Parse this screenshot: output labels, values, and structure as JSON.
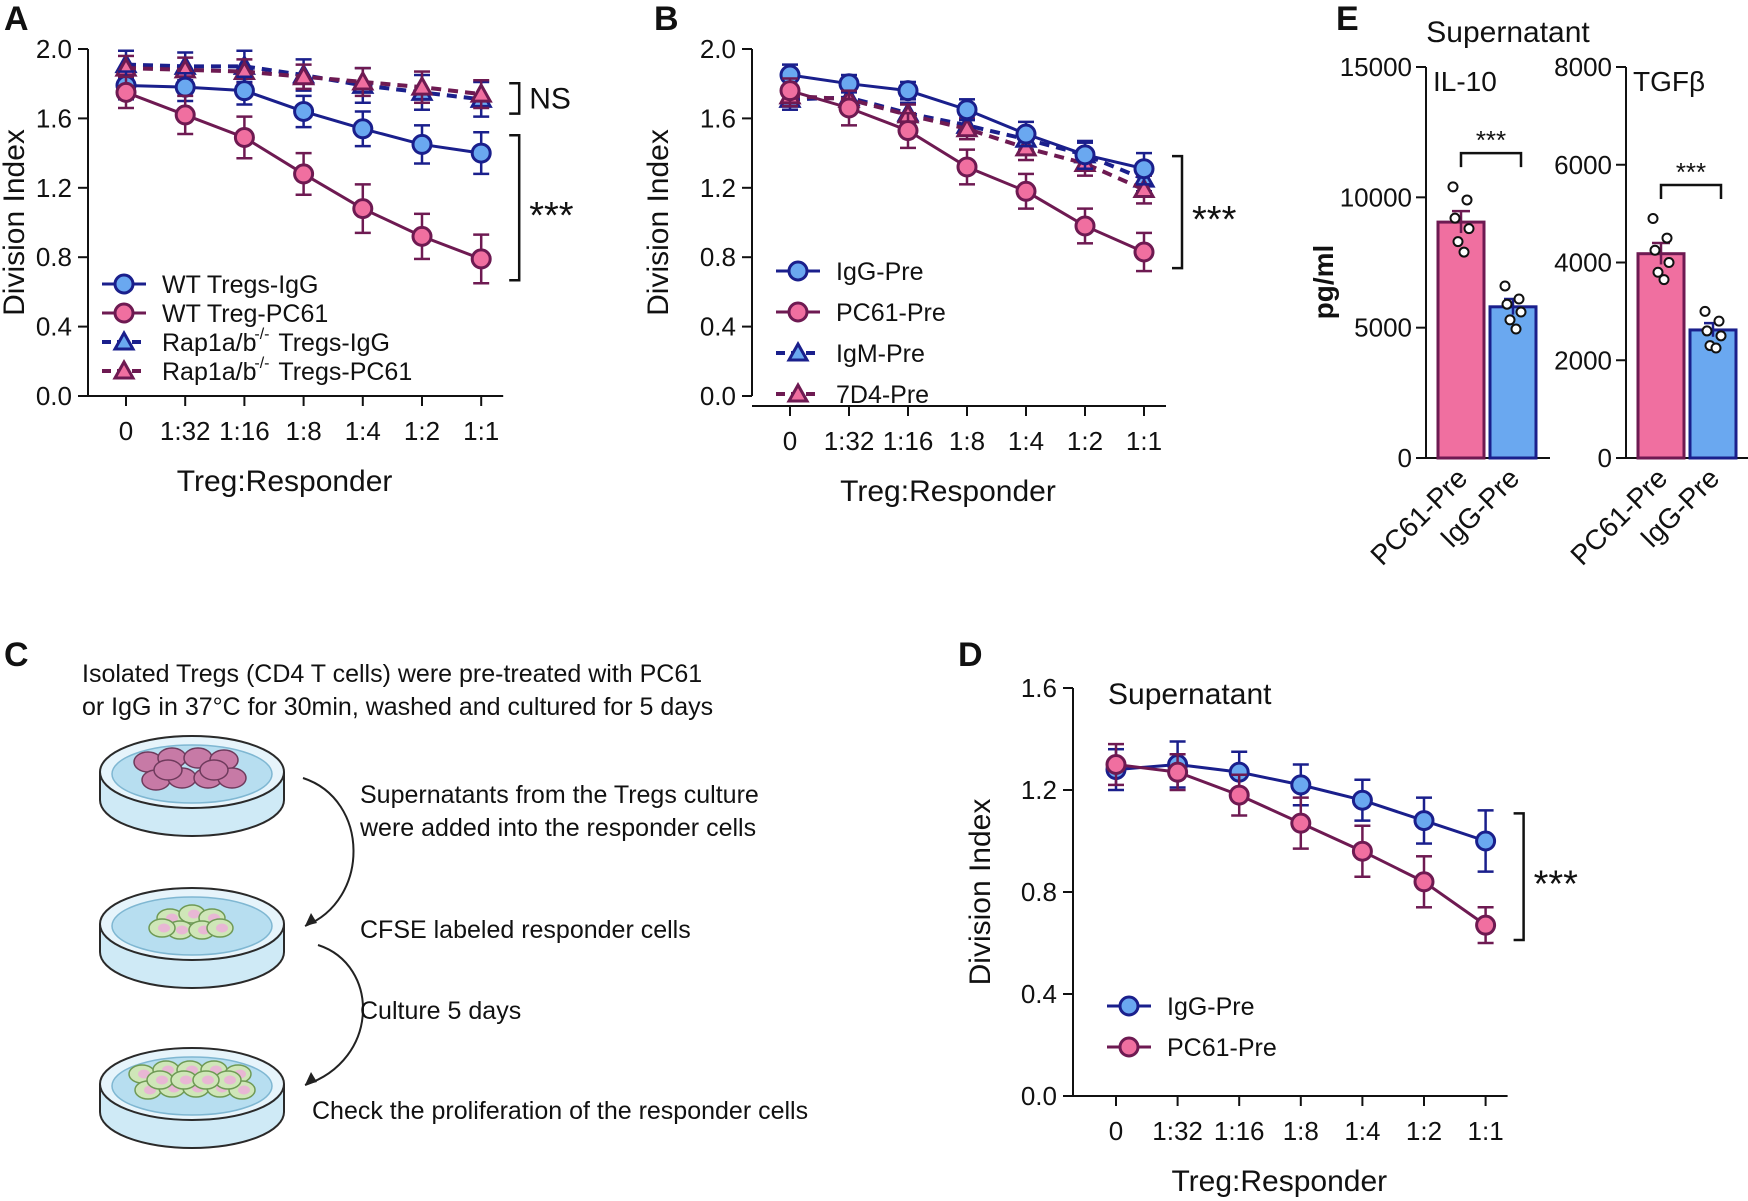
{
  "colors": {
    "blue_line": "#1a1f8c",
    "blue_fill": "#6aa8f0",
    "pink_line": "#6e1a52",
    "pink_fill": "#f06fa0",
    "axis": "#111111"
  },
  "chart_data": [
    {
      "panel": "A",
      "type": "line",
      "categories": [
        "0",
        "1:32",
        "1:16",
        "1:8",
        "1:4",
        "1:2",
        "1:1"
      ],
      "xlabel": "Treg:Responder",
      "ylabel": "Division Index",
      "ylim": [
        0,
        2.0
      ],
      "yticks": [
        "0.0",
        "0.4",
        "0.8",
        "1.2",
        "1.6",
        "2.0"
      ],
      "legend_position": "bottom-left",
      "series": [
        {
          "name": "WT Tregs-IgG",
          "name_main": "WT Tregs-IgG",
          "name_sup": "",
          "name_tail": "",
          "style": "blue-circle-solid",
          "values": [
            1.79,
            1.78,
            1.76,
            1.64,
            1.54,
            1.45,
            1.4
          ],
          "errors": [
            0.08,
            0.08,
            0.08,
            0.09,
            0.1,
            0.11,
            0.12
          ]
        },
        {
          "name": "WT Treg-PC61",
          "name_main": "WT Treg-PC61",
          "name_sup": "",
          "name_tail": "",
          "style": "pink-circle-solid",
          "values": [
            1.75,
            1.62,
            1.49,
            1.28,
            1.08,
            0.92,
            0.79
          ],
          "errors": [
            0.09,
            0.11,
            0.12,
            0.12,
            0.14,
            0.13,
            0.14
          ]
        },
        {
          "name": "Rap1a/b-/- Tregs-IgG",
          "name_main": "Rap1a/b",
          "name_sup": "-/-",
          "name_tail": " Tregs-IgG",
          "style": "blue-triangle-dash",
          "values": [
            1.91,
            1.9,
            1.9,
            1.85,
            1.79,
            1.75,
            1.71
          ],
          "errors": [
            0.08,
            0.08,
            0.09,
            0.09,
            0.1,
            0.1,
            0.1
          ]
        },
        {
          "name": "Rap1a/b-/- Tregs-PC61",
          "name_main": "Rap1a/b",
          "name_sup": "-/-",
          "name_tail": " Tregs-PC61",
          "style": "pink-triangle-dash",
          "values": [
            1.89,
            1.88,
            1.87,
            1.84,
            1.81,
            1.78,
            1.74
          ],
          "errors": [
            0.07,
            0.07,
            0.07,
            0.07,
            0.08,
            0.09,
            0.08
          ]
        }
      ],
      "annotations": [
        {
          "text": "NS",
          "between": [
            "Rap1a/b-/- Tregs-IgG",
            "Rap1a/b-/- Tregs-PC61"
          ]
        },
        {
          "text": "***",
          "between": [
            "WT Tregs-IgG",
            "WT Treg-PC61"
          ]
        }
      ]
    },
    {
      "panel": "B",
      "type": "line",
      "categories": [
        "0",
        "1:32",
        "1:16",
        "1:8",
        "1:4",
        "1:2",
        "1:1"
      ],
      "xlabel": "Treg:Responder",
      "ylabel": "Division Index",
      "ylim": [
        0,
        2.0
      ],
      "yticks": [
        "0.0",
        "0.4",
        "0.8",
        "1.2",
        "1.6",
        "2.0"
      ],
      "legend_position": "bottom-left",
      "series": [
        {
          "name": "IgG-Pre",
          "style": "blue-circle-solid",
          "values": [
            1.85,
            1.8,
            1.76,
            1.65,
            1.51,
            1.39,
            1.31
          ],
          "errors": [
            0.06,
            0.05,
            0.05,
            0.06,
            0.07,
            0.08,
            0.09
          ]
        },
        {
          "name": "PC61-Pre",
          "style": "pink-circle-solid",
          "values": [
            1.76,
            1.66,
            1.53,
            1.32,
            1.18,
            0.98,
            0.83
          ],
          "errors": [
            0.07,
            0.1,
            0.1,
            0.1,
            0.1,
            0.1,
            0.11
          ]
        },
        {
          "name": "IgM-Pre",
          "style": "blue-triangle-dash",
          "values": [
            1.71,
            1.72,
            1.63,
            1.56,
            1.48,
            1.39,
            1.25
          ],
          "errors": [
            0.06,
            0.06,
            0.06,
            0.06,
            0.06,
            0.07,
            0.07
          ]
        },
        {
          "name": "7D4-Pre",
          "style": "pink-triangle-dash",
          "values": [
            1.73,
            1.71,
            1.62,
            1.54,
            1.43,
            1.34,
            1.19
          ],
          "errors": [
            0.06,
            0.06,
            0.06,
            0.06,
            0.07,
            0.07,
            0.08
          ]
        }
      ],
      "annotations": [
        {
          "text": "***",
          "between": [
            "IgG-Pre",
            "PC61-Pre"
          ]
        }
      ]
    },
    {
      "panel": "D",
      "type": "line",
      "title": "Supernatant",
      "categories": [
        "0",
        "1:32",
        "1:16",
        "1:8",
        "1:4",
        "1:2",
        "1:1"
      ],
      "xlabel": "Treg:Responder",
      "ylabel": "Division Index",
      "ylim": [
        0,
        1.6
      ],
      "yticks": [
        "0.0",
        "0.4",
        "0.8",
        "1.2",
        "1.6"
      ],
      "legend_position": "bottom-left",
      "series": [
        {
          "name": "IgG-Pre",
          "style": "blue-circle-solid",
          "values": [
            1.28,
            1.3,
            1.27,
            1.22,
            1.16,
            1.08,
            1.0
          ],
          "errors": [
            0.08,
            0.09,
            0.08,
            0.08,
            0.08,
            0.09,
            0.12
          ]
        },
        {
          "name": "PC61-Pre",
          "style": "pink-circle-solid",
          "values": [
            1.3,
            1.27,
            1.18,
            1.07,
            0.96,
            0.84,
            0.67
          ],
          "errors": [
            0.08,
            0.07,
            0.08,
            0.1,
            0.1,
            0.1,
            0.07
          ]
        }
      ],
      "annotations": [
        {
          "text": "***",
          "between": [
            "IgG-Pre",
            "PC61-Pre"
          ]
        }
      ]
    },
    {
      "panel": "E",
      "type": "bar",
      "title": "Supernatant",
      "ylabel": "pg/ml",
      "subplots": [
        {
          "label": "IL-10",
          "categories": [
            "PC61-Pre",
            "IgG-Pre"
          ],
          "values": [
            9050,
            5800
          ],
          "errors": [
            420,
            300
          ],
          "ylim": [
            0,
            15000
          ],
          "yticks": [
            "0",
            "5000",
            "10000",
            "15000"
          ],
          "points": [
            [
              10400,
              9900,
              9200,
              8800,
              8300,
              7900
            ],
            [
              6600,
              6100,
              5900,
              5600,
              5300,
              4950
            ]
          ],
          "significance": "***"
        },
        {
          "label": "TGFβ",
          "categories": [
            "PC61-Pre",
            "IgG-Pre"
          ],
          "values": [
            4180,
            2620
          ],
          "errors": [
            220,
            140
          ],
          "ylim": [
            0,
            8000
          ],
          "yticks": [
            "0",
            "2000",
            "4000",
            "6000",
            "8000"
          ],
          "points": [
            [
              4900,
              4500,
              4250,
              4000,
              3800,
              3650
            ],
            [
              3000,
              2800,
              2600,
              2500,
              2300,
              2250
            ]
          ],
          "significance": "***"
        }
      ]
    }
  ],
  "panel_c": {
    "letter": "C",
    "intro_line1": "Isolated Tregs (CD4 T cells) were pre-treated with PC61",
    "intro_line2": "or IgG in 37°C for 30min, washed and cultured for 5 days",
    "step1_line1": "Supernatants from the Tregs culture",
    "step1_line2": "were added into the responder cells",
    "step2": "CFSE labeled responder cells",
    "step3": "Culture 5 days",
    "step4": "Check the proliferation of the responder cells"
  },
  "panel_letters": {
    "a": "A",
    "b": "B",
    "d": "D",
    "e": "E"
  }
}
